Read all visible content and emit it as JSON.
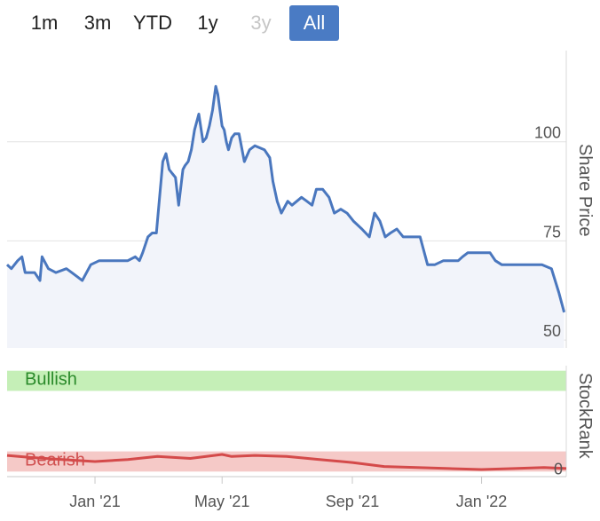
{
  "range_selector": {
    "buttons": [
      {
        "label": "1m",
        "state": "normal"
      },
      {
        "label": "3m",
        "state": "normal"
      },
      {
        "label": "YTD",
        "state": "normal"
      },
      {
        "label": "1y",
        "state": "normal"
      },
      {
        "label": "3y",
        "state": "disabled"
      },
      {
        "label": "All",
        "state": "active"
      }
    ]
  },
  "chart_data": [
    {
      "type": "line",
      "title": "",
      "ylabel": "Share Price",
      "ylim": [
        48,
        123
      ],
      "yticks": [
        50,
        75,
        100
      ],
      "xlim": [
        "2020-10-10",
        "2022-03-22"
      ],
      "xticks": [
        {
          "date": "2021-01-01",
          "label": "Jan '21"
        },
        {
          "date": "2021-05-01",
          "label": "May '21"
        },
        {
          "date": "2021-09-01",
          "label": "Sep '21"
        },
        {
          "date": "2022-01-01",
          "label": "Jan '22"
        }
      ],
      "grid": true,
      "series": [
        {
          "color": "#4a77be",
          "x": [
            "2020-10-10",
            "2020-10-14",
            "2020-10-20",
            "2020-10-24",
            "2020-10-27",
            "2020-11-05",
            "2020-11-10",
            "2020-11-12",
            "2020-11-18",
            "2020-11-25",
            "2020-12-05",
            "2020-12-10",
            "2020-12-15",
            "2020-12-20",
            "2020-12-28",
            "2021-01-05",
            "2021-01-15",
            "2021-01-25",
            "2021-02-01",
            "2021-02-08",
            "2021-02-12",
            "2021-02-15",
            "2021-02-20",
            "2021-02-24",
            "2021-02-28",
            "2021-03-03",
            "2021-03-06",
            "2021-03-09",
            "2021-03-12",
            "2021-03-15",
            "2021-03-18",
            "2021-03-21",
            "2021-03-25",
            "2021-03-27",
            "2021-03-30",
            "2021-04-02",
            "2021-04-05",
            "2021-04-09",
            "2021-04-13",
            "2021-04-16",
            "2021-04-19",
            "2021-04-22",
            "2021-04-25",
            "2021-04-27",
            "2021-04-29",
            "2021-05-01",
            "2021-05-03",
            "2021-05-05",
            "2021-05-07",
            "2021-05-10",
            "2021-05-13",
            "2021-05-17",
            "2021-05-22",
            "2021-05-27",
            "2021-06-01",
            "2021-06-10",
            "2021-06-15",
            "2021-06-18",
            "2021-06-22",
            "2021-06-26",
            "2021-07-02",
            "2021-07-06",
            "2021-07-15",
            "2021-07-20",
            "2021-07-25",
            "2021-07-29",
            "2021-08-04",
            "2021-08-10",
            "2021-08-15",
            "2021-08-21",
            "2021-08-27",
            "2021-09-02",
            "2021-09-10",
            "2021-09-17",
            "2021-09-22",
            "2021-09-27",
            "2021-10-02",
            "2021-10-07",
            "2021-10-13",
            "2021-10-16",
            "2021-10-19",
            "2021-10-23",
            "2021-10-27",
            "2021-10-31",
            "2021-11-04",
            "2021-11-11",
            "2021-11-18",
            "2021-11-26",
            "2021-12-05",
            "2021-12-10",
            "2021-12-14",
            "2021-12-19",
            "2021-12-28",
            "2022-01-05",
            "2022-01-09",
            "2022-01-14",
            "2022-01-20",
            "2022-01-28",
            "2022-02-05",
            "2022-02-13",
            "2022-02-20",
            "2022-02-27",
            "2022-03-08",
            "2022-03-15",
            "2022-03-20"
          ],
          "y": [
            69,
            68,
            70,
            71,
            67,
            67,
            65,
            71,
            68,
            67,
            68,
            67,
            66,
            65,
            69,
            70,
            70,
            70,
            70,
            71,
            70,
            72,
            76,
            77,
            77,
            86,
            95,
            97,
            93,
            92,
            91,
            84,
            93,
            94,
            95,
            98,
            103,
            107,
            100,
            101,
            104,
            108,
            114,
            112,
            108,
            104,
            103,
            100,
            98,
            101,
            102,
            102,
            95,
            98,
            99,
            98,
            96,
            90,
            85,
            82,
            85,
            84,
            86,
            85,
            84,
            88,
            88,
            86,
            82,
            83,
            82,
            80,
            78,
            76,
            82,
            80,
            76,
            77,
            78,
            77,
            76,
            76,
            76,
            76,
            76,
            69,
            69,
            70,
            70,
            70,
            71,
            72,
            72,
            72,
            72,
            70,
            69,
            69,
            69,
            69,
            69,
            69,
            68,
            62,
            57
          ]
        }
      ]
    },
    {
      "type": "area",
      "title": "",
      "ylabel": "StockRank",
      "ylim": [
        -5,
        105
      ],
      "yticks": [
        0
      ],
      "bands": [
        {
          "label": "Bullish",
          "from": 80,
          "to": 100,
          "color": "#c5efb7",
          "text_color": "#2a8a2a"
        },
        {
          "label": "Bearish",
          "from": 0,
          "to": 20,
          "color": "#f5c9c7",
          "text_color": "#d05050"
        }
      ],
      "series": [
        {
          "color": "#d44a4a",
          "x": [
            "2020-10-10",
            "2020-11-01",
            "2020-12-01",
            "2021-01-01",
            "2021-02-01",
            "2021-03-01",
            "2021-04-01",
            "2021-05-01",
            "2021-05-10",
            "2021-06-01",
            "2021-07-01",
            "2021-08-01",
            "2021-09-01",
            "2021-10-01",
            "2021-11-01",
            "2021-12-01",
            "2022-01-01",
            "2022-02-01",
            "2022-03-01",
            "2022-03-22"
          ],
          "y": [
            16,
            14,
            12,
            10,
            12,
            15,
            13,
            17,
            15,
            16,
            15,
            12,
            9,
            5,
            4,
            3,
            2,
            3,
            4,
            3
          ]
        }
      ]
    }
  ]
}
